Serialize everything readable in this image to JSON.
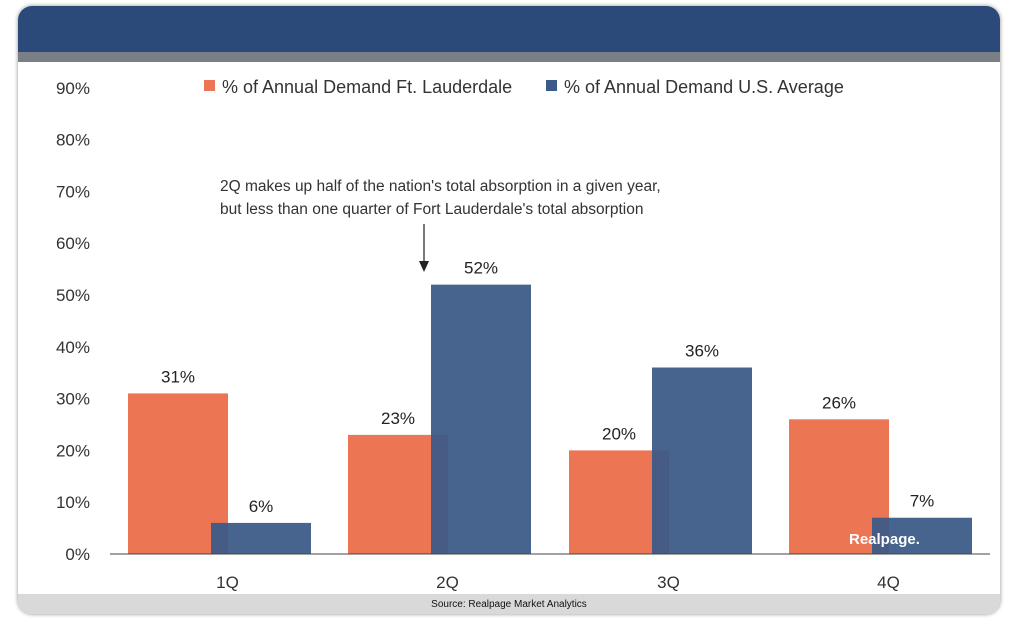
{
  "colors": {
    "header": "#2b4a7a",
    "stripe": "#7a7f86",
    "series_ftl": "#ec7553",
    "series_us": "#3c5a87",
    "footer": "#d9d9d9"
  },
  "annotation": {
    "line1": "2Q makes up half of the nation's total absorption in a given year,",
    "line2": "but less than one quarter of Fort Lauderdale's total absorption",
    "target_category": "2Q"
  },
  "watermark": "Realpage.",
  "footer": {
    "source": "Source: Realpage Market Analytics"
  },
  "chart_data": {
    "type": "bar",
    "categories": [
      "1Q",
      "2Q",
      "3Q",
      "4Q"
    ],
    "series": [
      {
        "name": "% of Annual Demand Ft. Lauderdale",
        "values": [
          31,
          23,
          20,
          26
        ],
        "color": "#ec7553"
      },
      {
        "name": "% of Annual Demand U.S. Average",
        "values": [
          6,
          52,
          36,
          7
        ],
        "color": "#3c5a87"
      }
    ],
    "data_labels": [
      [
        "31%",
        "23%",
        "20%",
        "26%"
      ],
      [
        "6%",
        "52%",
        "36%",
        "7%"
      ]
    ],
    "yticks": [
      "0%",
      "10%",
      "20%",
      "30%",
      "40%",
      "50%",
      "60%",
      "70%",
      "80%",
      "90%"
    ],
    "ylim": [
      0,
      90
    ],
    "title": "",
    "xlabel": "",
    "ylabel": "",
    "legend_position": "top-center",
    "grid": false
  }
}
